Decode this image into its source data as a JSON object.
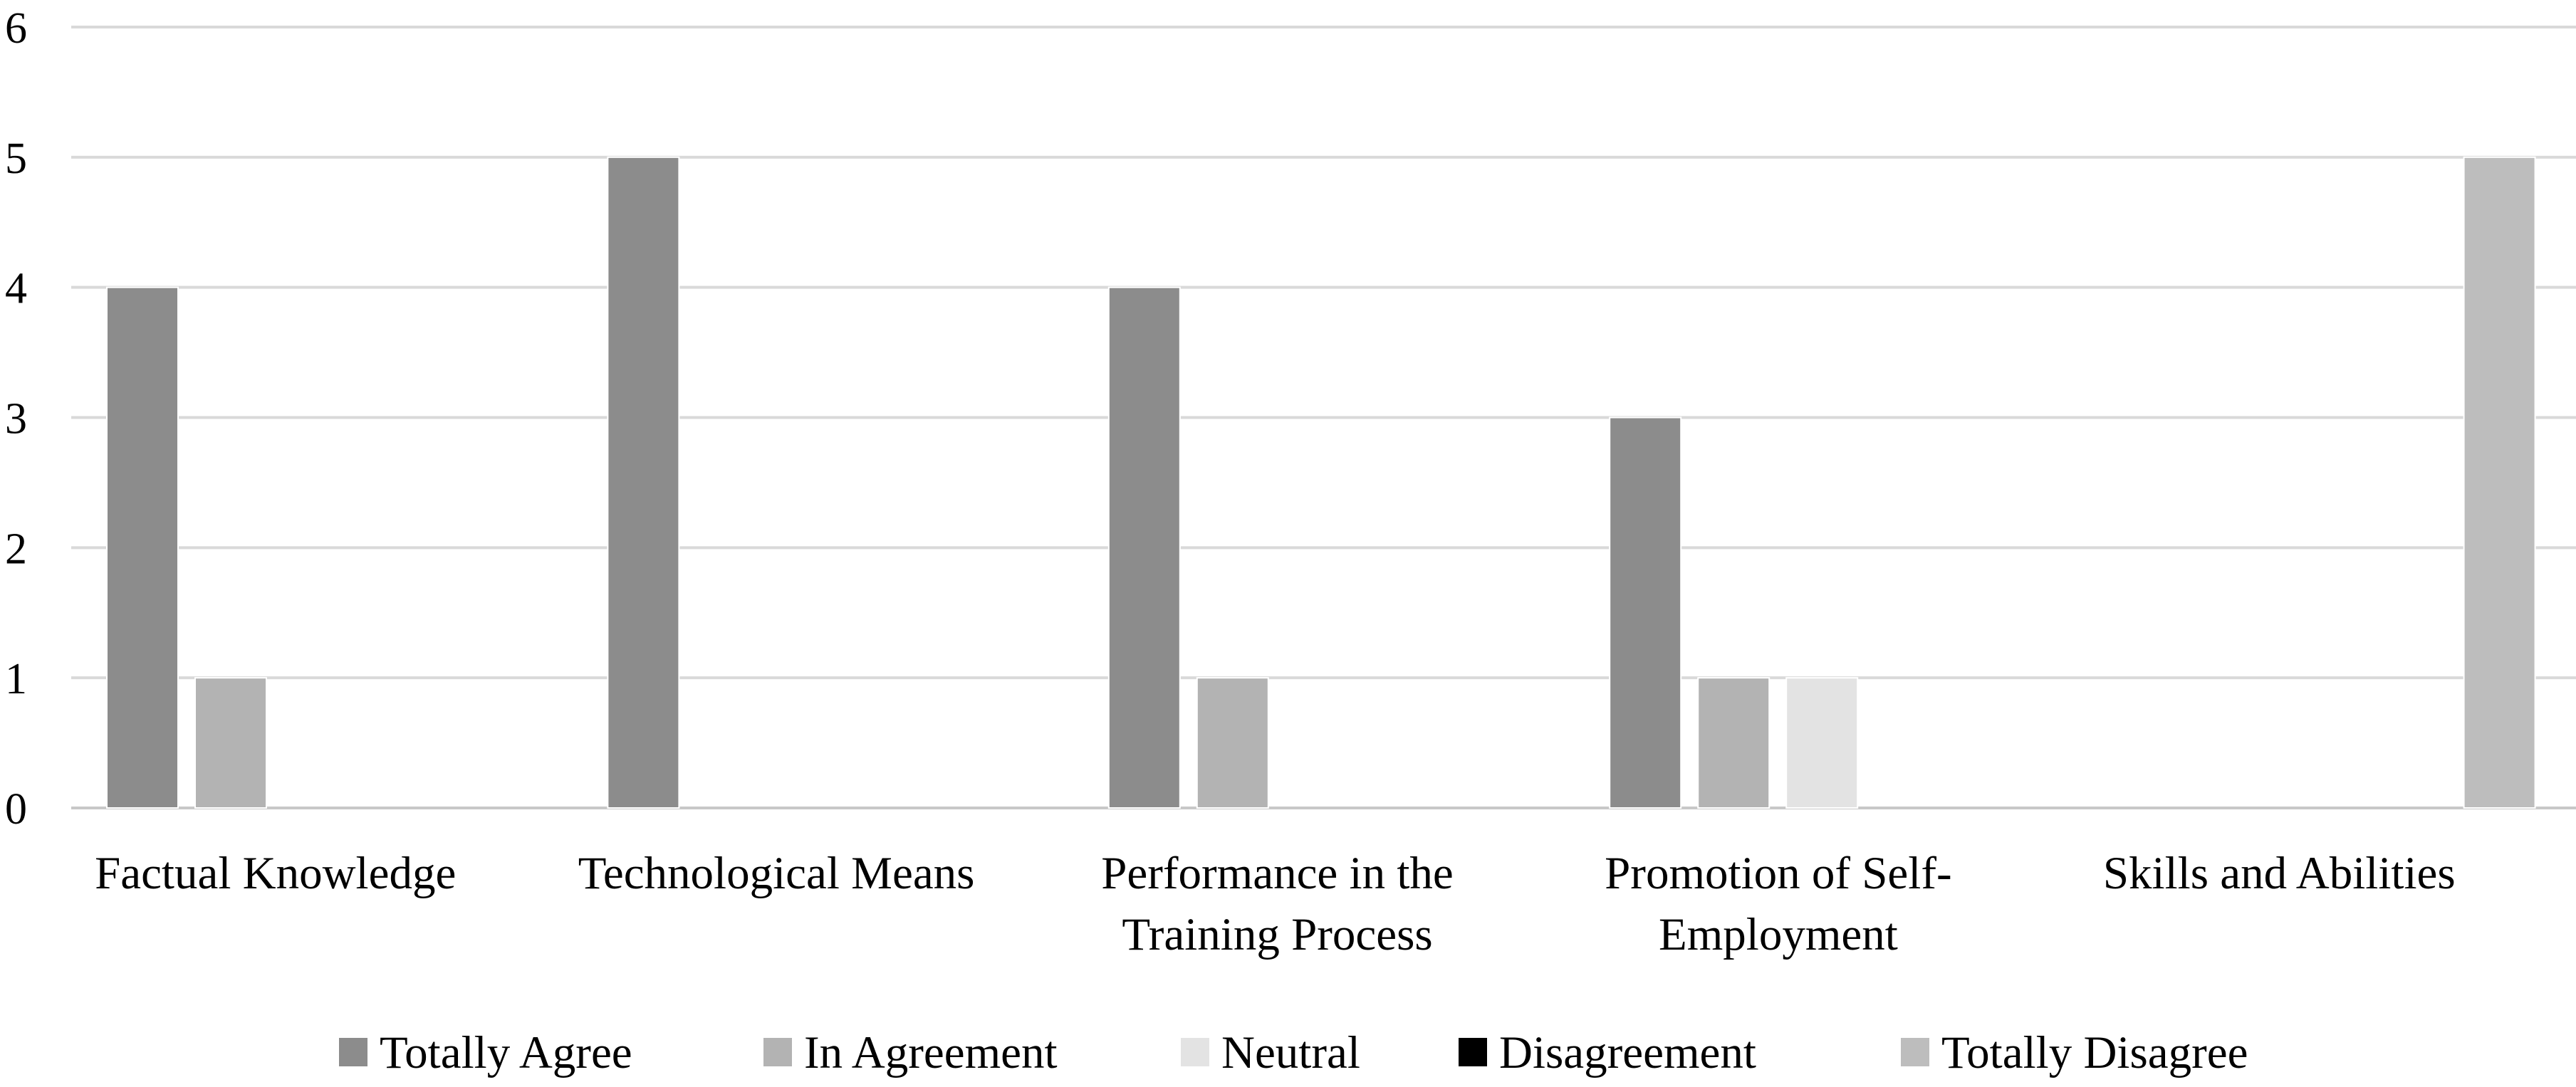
{
  "chart_data": {
    "type": "bar",
    "title": "",
    "xlabel": "",
    "ylabel": "",
    "ylim": [
      0,
      6
    ],
    "yticks": [
      0,
      1,
      2,
      3,
      4,
      5,
      6
    ],
    "grid": true,
    "legend_position": "bottom",
    "categories": [
      [
        "Factual Knowledge"
      ],
      [
        "Technological Means"
      ],
      [
        "Performance in the",
        "Training Process"
      ],
      [
        "Promotion of Self-",
        "Employment"
      ],
      [
        "Skills and Abilities"
      ]
    ],
    "series": [
      {
        "name": "Totally Agree",
        "color": "#8c8c8c",
        "values": [
          4,
          5,
          4,
          3,
          0
        ]
      },
      {
        "name": "In Agreement",
        "color": "#b3b3b3",
        "values": [
          1,
          0,
          1,
          1,
          0
        ]
      },
      {
        "name": "Neutral",
        "color": "#e3e3e3",
        "values": [
          0,
          0,
          0,
          1,
          0
        ]
      },
      {
        "name": "Disagreement",
        "color": "#000000",
        "values": [
          0,
          0,
          0,
          0,
          0
        ]
      },
      {
        "name": "Totally Disagree",
        "color": "#bdbdbd",
        "values": [
          0,
          0,
          0,
          0,
          5
        ]
      }
    ]
  }
}
